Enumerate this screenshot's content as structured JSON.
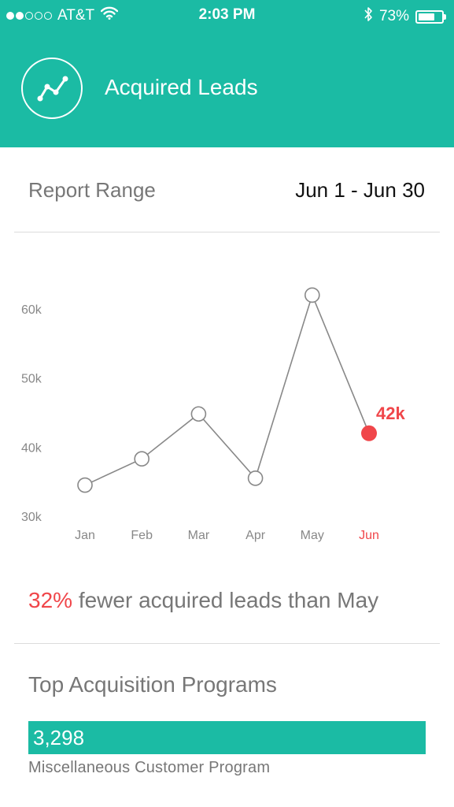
{
  "status_bar": {
    "carrier": "AT&T",
    "time": "2:03 PM",
    "battery": "73%",
    "battery_level": 0.73,
    "signal_bars_filled": 2,
    "signal_bars_total": 5,
    "icons": [
      "wifi-icon",
      "bluetooth-icon",
      "battery-icon"
    ]
  },
  "header": {
    "title": "Acquired Leads",
    "icon": "line-chart-icon",
    "background": "#1bbba4"
  },
  "report_range": {
    "label": "Report Range",
    "value": "Jun 1 - Jun 30"
  },
  "chart_data": {
    "type": "line",
    "categories": [
      "Jan",
      "Feb",
      "Mar",
      "Apr",
      "May",
      "Jun"
    ],
    "values": [
      34.5,
      38.3,
      44.8,
      35.5,
      62.0,
      42.0
    ],
    "y_ticks": [
      "30k",
      "40k",
      "50k",
      "60k"
    ],
    "ylim": [
      30,
      60
    ],
    "highlight": {
      "category": "Jun",
      "label": "42k",
      "color": "#f0464a"
    },
    "line_color": "#888888",
    "grid": false
  },
  "summary": {
    "percent": "32%",
    "text": " fewer acquired leads than May",
    "percent_color": "#f0464a"
  },
  "programs": {
    "title": "Top Acquisition Programs",
    "items": [
      {
        "value": "3,298",
        "name": "Miscellaneous Customer Program",
        "share": 1.0
      }
    ]
  }
}
